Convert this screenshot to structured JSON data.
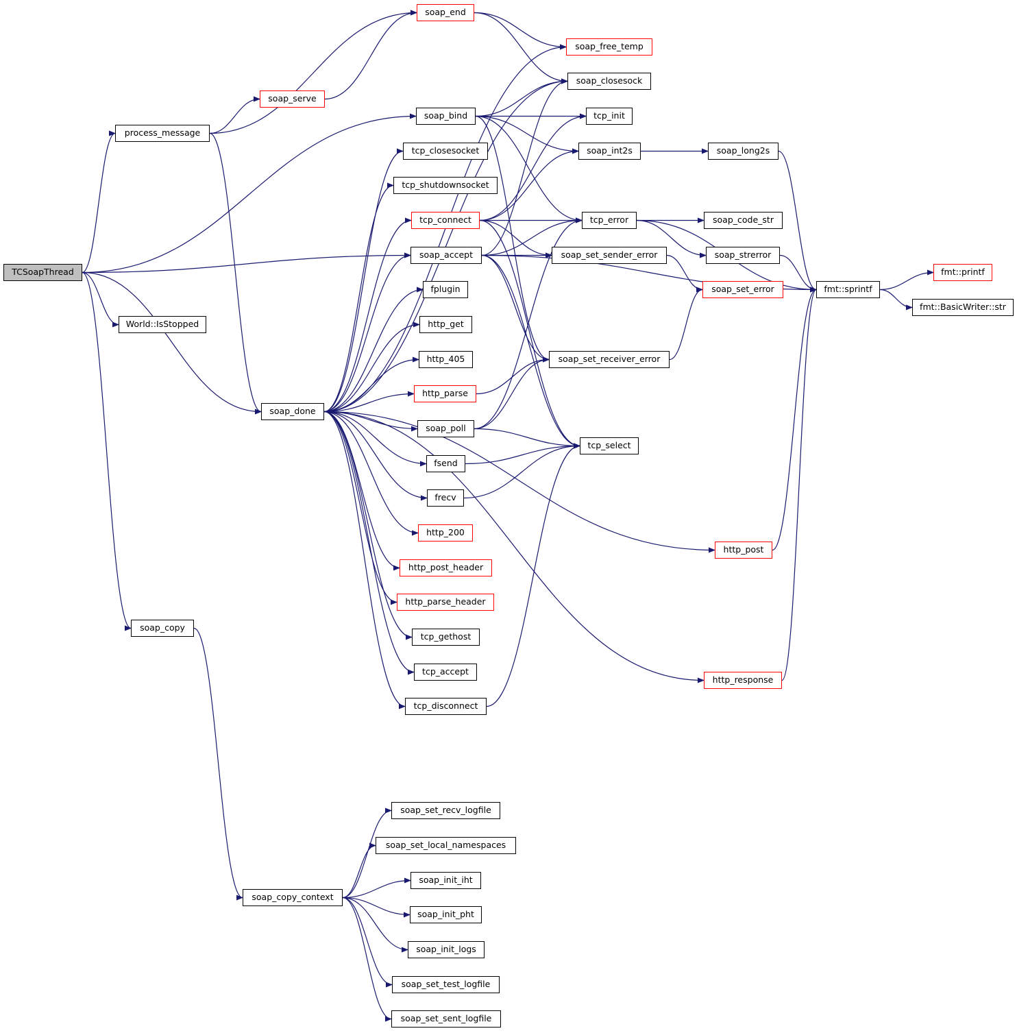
{
  "colors": {
    "edge": "#191970",
    "external_border": "#ff0000",
    "node_border": "#000000",
    "root_fill": "#bfbfbf"
  },
  "nodes": [
    {
      "id": "TCSoapThread",
      "label": "TCSoapThread",
      "root": true
    },
    {
      "id": "process_message",
      "label": "process_message"
    },
    {
      "id": "World::IsStopped",
      "label": "World::IsStopped"
    },
    {
      "id": "soap_copy",
      "label": "soap_copy"
    },
    {
      "id": "soap_done",
      "label": "soap_done"
    },
    {
      "id": "soap_copy_context",
      "label": "soap_copy_context"
    },
    {
      "id": "soap_end",
      "label": "soap_end",
      "external": true
    },
    {
      "id": "soap_serve",
      "label": "soap_serve",
      "external": true
    },
    {
      "id": "soap_free_temp",
      "label": "soap_free_temp",
      "external": true
    },
    {
      "id": "soap_closesock",
      "label": "soap_closesock"
    },
    {
      "id": "soap_bind",
      "label": "soap_bind"
    },
    {
      "id": "tcp_init",
      "label": "tcp_init"
    },
    {
      "id": "tcp_closesocket",
      "label": "tcp_closesocket"
    },
    {
      "id": "soap_int2s",
      "label": "soap_int2s"
    },
    {
      "id": "soap_long2s",
      "label": "soap_long2s"
    },
    {
      "id": "tcp_shutdownsocket",
      "label": "tcp_shutdownsocket"
    },
    {
      "id": "tcp_connect",
      "label": "tcp_connect",
      "external": true
    },
    {
      "id": "tcp_error",
      "label": "tcp_error"
    },
    {
      "id": "soap_code_str",
      "label": "soap_code_str"
    },
    {
      "id": "soap_accept",
      "label": "soap_accept"
    },
    {
      "id": "soap_set_sender_error",
      "label": "soap_set_sender_error"
    },
    {
      "id": "soap_strerror",
      "label": "soap_strerror"
    },
    {
      "id": "fmt::sprintf",
      "label": "fmt::sprintf"
    },
    {
      "id": "fmt::printf",
      "label": "fmt::printf",
      "external": true
    },
    {
      "id": "fmt::BasicWriter::str",
      "label": "fmt::BasicWriter::str"
    },
    {
      "id": "soap_set_error",
      "label": "soap_set_error",
      "external": true
    },
    {
      "id": "fplugin",
      "label": "fplugin"
    },
    {
      "id": "http_get",
      "label": "http_get"
    },
    {
      "id": "http_405",
      "label": "http_405"
    },
    {
      "id": "soap_set_receiver_error",
      "label": "soap_set_receiver_error"
    },
    {
      "id": "http_parse",
      "label": "http_parse",
      "external": true
    },
    {
      "id": "soap_poll",
      "label": "soap_poll"
    },
    {
      "id": "tcp_select",
      "label": "tcp_select"
    },
    {
      "id": "fsend",
      "label": "fsend"
    },
    {
      "id": "frecv",
      "label": "frecv"
    },
    {
      "id": "http_200",
      "label": "http_200",
      "external": true
    },
    {
      "id": "http_post",
      "label": "http_post",
      "external": true
    },
    {
      "id": "http_post_header",
      "label": "http_post_header",
      "external": true
    },
    {
      "id": "http_parse_header",
      "label": "http_parse_header",
      "external": true
    },
    {
      "id": "tcp_gethost",
      "label": "tcp_gethost"
    },
    {
      "id": "tcp_accept",
      "label": "tcp_accept"
    },
    {
      "id": "http_response",
      "label": "http_response",
      "external": true
    },
    {
      "id": "tcp_disconnect",
      "label": "tcp_disconnect"
    },
    {
      "id": "soap_set_recv_logfile",
      "label": "soap_set_recv_logfile"
    },
    {
      "id": "soap_set_local_namespaces",
      "label": "soap_set_local_namespaces"
    },
    {
      "id": "soap_init_iht",
      "label": "soap_init_iht"
    },
    {
      "id": "soap_init_pht",
      "label": "soap_init_pht"
    },
    {
      "id": "soap_init_logs",
      "label": "soap_init_logs"
    },
    {
      "id": "soap_set_test_logfile",
      "label": "soap_set_test_logfile"
    },
    {
      "id": "soap_set_sent_logfile",
      "label": "soap_set_sent_logfile"
    }
  ],
  "edges": [
    [
      "TCSoapThread",
      "process_message"
    ],
    [
      "TCSoapThread",
      "soap_bind"
    ],
    [
      "TCSoapThread",
      "soap_accept"
    ],
    [
      "TCSoapThread",
      "World::IsStopped"
    ],
    [
      "TCSoapThread",
      "soap_done"
    ],
    [
      "TCSoapThread",
      "soap_copy"
    ],
    [
      "process_message",
      "soap_end"
    ],
    [
      "process_message",
      "soap_serve"
    ],
    [
      "process_message",
      "soap_done"
    ],
    [
      "soap_serve",
      "soap_end"
    ],
    [
      "soap_end",
      "soap_free_temp"
    ],
    [
      "soap_end",
      "soap_closesock"
    ],
    [
      "soap_bind",
      "soap_closesock"
    ],
    [
      "soap_bind",
      "tcp_init"
    ],
    [
      "soap_bind",
      "soap_int2s"
    ],
    [
      "soap_bind",
      "tcp_error"
    ],
    [
      "soap_bind",
      "soap_set_receiver_error"
    ],
    [
      "soap_int2s",
      "soap_long2s"
    ],
    [
      "soap_long2s",
      "fmt::sprintf"
    ],
    [
      "tcp_connect",
      "tcp_init"
    ],
    [
      "tcp_connect",
      "soap_int2s"
    ],
    [
      "tcp_connect",
      "tcp_error"
    ],
    [
      "tcp_connect",
      "soap_set_sender_error"
    ],
    [
      "tcp_connect",
      "tcp_select"
    ],
    [
      "soap_accept",
      "soap_closesock"
    ],
    [
      "soap_accept",
      "tcp_error"
    ],
    [
      "soap_accept",
      "soap_set_sender_error"
    ],
    [
      "soap_accept",
      "fmt::sprintf"
    ],
    [
      "soap_accept",
      "soap_set_receiver_error"
    ],
    [
      "soap_accept",
      "tcp_select"
    ],
    [
      "tcp_error",
      "soap_code_str"
    ],
    [
      "tcp_error",
      "soap_strerror"
    ],
    [
      "tcp_error",
      "fmt::sprintf"
    ],
    [
      "soap_set_sender_error",
      "soap_set_error"
    ],
    [
      "soap_set_receiver_error",
      "soap_set_error"
    ],
    [
      "soap_strerror",
      "fmt::sprintf"
    ],
    [
      "fmt::sprintf",
      "fmt::printf"
    ],
    [
      "fmt::sprintf",
      "fmt::BasicWriter::str"
    ],
    [
      "soap_done",
      "soap_free_temp"
    ],
    [
      "soap_done",
      "soap_closesock"
    ],
    [
      "soap_done",
      "tcp_closesocket"
    ],
    [
      "soap_done",
      "tcp_shutdownsocket"
    ],
    [
      "soap_done",
      "tcp_connect"
    ],
    [
      "soap_done",
      "soap_accept"
    ],
    [
      "soap_done",
      "fplugin"
    ],
    [
      "soap_done",
      "http_get"
    ],
    [
      "soap_done",
      "http_405"
    ],
    [
      "soap_done",
      "http_parse"
    ],
    [
      "soap_done",
      "soap_poll"
    ],
    [
      "soap_done",
      "fsend"
    ],
    [
      "soap_done",
      "frecv"
    ],
    [
      "soap_done",
      "http_200"
    ],
    [
      "soap_done",
      "http_post_header"
    ],
    [
      "soap_done",
      "http_parse_header"
    ],
    [
      "soap_done",
      "tcp_gethost"
    ],
    [
      "soap_done",
      "tcp_accept"
    ],
    [
      "soap_done",
      "tcp_disconnect"
    ],
    [
      "soap_done",
      "http_post"
    ],
    [
      "soap_done",
      "http_response"
    ],
    [
      "http_parse",
      "soap_set_receiver_error"
    ],
    [
      "soap_poll",
      "tcp_error"
    ],
    [
      "soap_poll",
      "soap_set_receiver_error"
    ],
    [
      "soap_poll",
      "tcp_select"
    ],
    [
      "fsend",
      "tcp_select"
    ],
    [
      "frecv",
      "tcp_select"
    ],
    [
      "tcp_disconnect",
      "tcp_select"
    ],
    [
      "http_post",
      "fmt::sprintf"
    ],
    [
      "http_response",
      "fmt::sprintf"
    ],
    [
      "soap_copy",
      "soap_copy_context"
    ],
    [
      "soap_copy_context",
      "soap_set_recv_logfile"
    ],
    [
      "soap_copy_context",
      "soap_set_local_namespaces"
    ],
    [
      "soap_copy_context",
      "soap_init_iht"
    ],
    [
      "soap_copy_context",
      "soap_init_pht"
    ],
    [
      "soap_copy_context",
      "soap_init_logs"
    ],
    [
      "soap_copy_context",
      "soap_set_test_logfile"
    ],
    [
      "soap_copy_context",
      "soap_set_sent_logfile"
    ]
  ]
}
